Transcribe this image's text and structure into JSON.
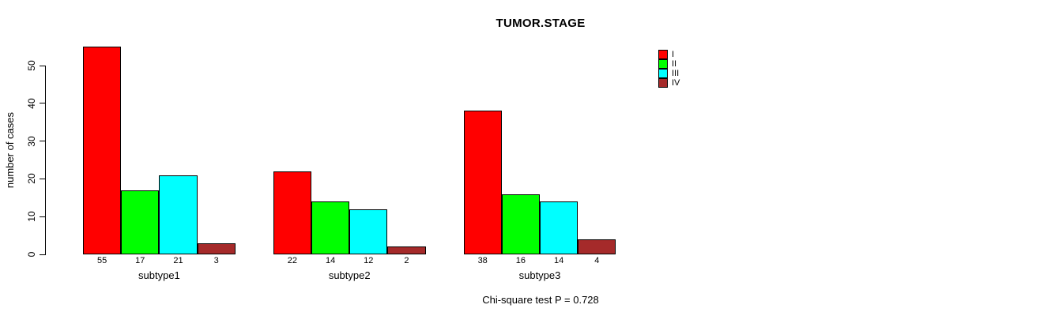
{
  "chart_data": {
    "type": "bar",
    "title": "TUMOR.STAGE",
    "xlabel": "",
    "ylabel": "number of cases",
    "categories": [
      "subtype1",
      "subtype2",
      "subtype3"
    ],
    "series": [
      {
        "name": "I",
        "color": "#ff0000",
        "values": [
          55,
          22,
          38
        ]
      },
      {
        "name": "II",
        "color": "#00ff00",
        "values": [
          17,
          14,
          16
        ]
      },
      {
        "name": "III",
        "color": "#00ffff",
        "values": [
          21,
          12,
          14
        ]
      },
      {
        "name": "IV",
        "color": "#a52a2a",
        "values": [
          3,
          2,
          4
        ]
      }
    ],
    "ylim": [
      0,
      50
    ],
    "yticks": [
      0,
      10,
      20,
      30,
      40,
      50
    ],
    "bar_value_labels": [
      [
        "55",
        "17",
        "21",
        "3"
      ],
      [
        "22",
        "14",
        "12",
        "2"
      ],
      [
        "38",
        "16",
        "14",
        "4"
      ]
    ],
    "grid": "off",
    "legend_position": "top-right",
    "annotation": "Chi-square test P = 0.728",
    "background_color": "#ffffff",
    "axis_color": "#000000"
  }
}
